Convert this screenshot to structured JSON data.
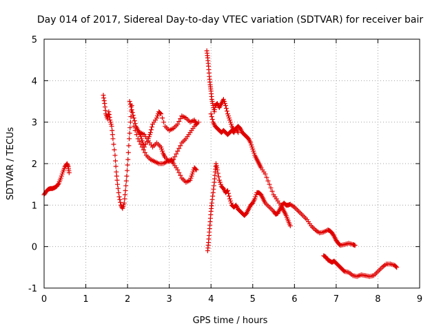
{
  "chart_data": {
    "type": "scatter",
    "title": "Day 014 of 2017, Sidereal Day-to-day VTEC variation (SDTVAR) for receiver bair",
    "xlabel": "GPS time / hours",
    "ylabel": "SDTVAR / TECUs",
    "xlim": [
      0,
      9
    ],
    "ylim": [
      -1,
      5
    ],
    "x_ticks": [
      "0",
      "1",
      "2",
      "3",
      "4",
      "5",
      "6",
      "7",
      "8",
      "9"
    ],
    "y_ticks": [
      "-1",
      "0",
      "1",
      "2",
      "3",
      "4",
      "5"
    ],
    "grid": true,
    "marker": "plus",
    "color": "#e00000",
    "series": [
      {
        "name": "seg1",
        "points": [
          [
            0.0,
            1.25
          ],
          [
            0.05,
            1.33
          ],
          [
            0.1,
            1.38
          ],
          [
            0.15,
            1.4
          ],
          [
            0.2,
            1.4
          ],
          [
            0.25,
            1.42
          ],
          [
            0.3,
            1.45
          ],
          [
            0.35,
            1.52
          ],
          [
            0.4,
            1.65
          ],
          [
            0.45,
            1.8
          ],
          [
            0.5,
            1.93
          ],
          [
            0.55,
            2.0
          ],
          [
            0.58,
            1.92
          ],
          [
            0.6,
            1.78
          ]
        ]
      },
      {
        "name": "seg2",
        "points": [
          [
            1.42,
            3.65
          ],
          [
            1.45,
            3.45
          ],
          [
            1.48,
            3.2
          ],
          [
            1.52,
            3.08
          ],
          [
            1.55,
            3.25
          ],
          [
            1.58,
            3.05
          ],
          [
            1.62,
            2.9
          ],
          [
            1.65,
            2.6
          ],
          [
            1.7,
            2.2
          ],
          [
            1.73,
            1.8
          ],
          [
            1.76,
            1.5
          ],
          [
            1.8,
            1.2
          ],
          [
            1.84,
            1.0
          ],
          [
            1.88,
            0.92
          ],
          [
            1.92,
            1.05
          ],
          [
            1.95,
            1.35
          ],
          [
            1.98,
            1.7
          ],
          [
            2.01,
            2.1
          ],
          [
            2.04,
            2.6
          ],
          [
            2.07,
            3.0
          ],
          [
            2.1,
            3.4
          ]
        ]
      },
      {
        "name": "seg3",
        "points": [
          [
            2.05,
            3.5
          ],
          [
            2.1,
            3.3
          ],
          [
            2.15,
            3.1
          ],
          [
            2.2,
            2.9
          ],
          [
            2.25,
            2.8
          ],
          [
            2.3,
            2.7
          ],
          [
            2.35,
            2.55
          ],
          [
            2.4,
            2.4
          ],
          [
            2.5,
            2.6
          ],
          [
            2.55,
            2.75
          ],
          [
            2.6,
            2.95
          ],
          [
            2.7,
            3.1
          ],
          [
            2.75,
            3.25
          ],
          [
            2.8,
            3.2
          ],
          [
            2.9,
            2.9
          ],
          [
            3.0,
            2.8
          ],
          [
            3.1,
            2.85
          ],
          [
            3.2,
            2.95
          ],
          [
            3.3,
            3.15
          ],
          [
            3.4,
            3.1
          ],
          [
            3.5,
            3.0
          ],
          [
            3.6,
            3.05
          ],
          [
            3.65,
            2.95
          ]
        ]
      },
      {
        "name": "seg4",
        "points": [
          [
            2.15,
            2.9
          ],
          [
            2.25,
            2.6
          ],
          [
            2.35,
            2.4
          ],
          [
            2.45,
            2.2
          ],
          [
            2.55,
            2.1
          ],
          [
            2.65,
            2.05
          ],
          [
            2.75,
            2.0
          ],
          [
            2.85,
            2.0
          ],
          [
            2.95,
            2.05
          ],
          [
            3.05,
            2.1
          ],
          [
            3.1,
            2.0
          ],
          [
            3.2,
            1.85
          ],
          [
            3.3,
            1.65
          ],
          [
            3.4,
            1.55
          ],
          [
            3.5,
            1.6
          ],
          [
            3.55,
            1.75
          ],
          [
            3.6,
            1.9
          ],
          [
            3.65,
            1.85
          ]
        ]
      },
      {
        "name": "seg5",
        "points": [
          [
            2.3,
            2.75
          ],
          [
            2.4,
            2.7
          ],
          [
            2.5,
            2.55
          ],
          [
            2.6,
            2.4
          ],
          [
            2.7,
            2.5
          ],
          [
            2.8,
            2.4
          ],
          [
            2.85,
            2.25
          ],
          [
            2.9,
            2.15
          ],
          [
            3.0,
            2.05
          ],
          [
            3.1,
            2.1
          ],
          [
            3.2,
            2.3
          ],
          [
            3.3,
            2.5
          ],
          [
            3.4,
            2.6
          ],
          [
            3.5,
            2.75
          ],
          [
            3.6,
            2.9
          ],
          [
            3.7,
            3.0
          ]
        ]
      },
      {
        "name": "seg6",
        "points": [
          [
            3.9,
            4.72
          ],
          [
            3.92,
            4.55
          ],
          [
            3.94,
            4.35
          ],
          [
            3.96,
            4.1
          ],
          [
            3.98,
            3.9
          ],
          [
            4.0,
            3.75
          ],
          [
            4.02,
            3.55
          ],
          [
            4.05,
            3.4
          ],
          [
            4.08,
            3.25
          ],
          [
            4.1,
            3.4
          ],
          [
            4.15,
            3.45
          ],
          [
            4.2,
            3.35
          ],
          [
            4.25,
            3.45
          ],
          [
            4.3,
            3.55
          ],
          [
            4.35,
            3.4
          ],
          [
            4.4,
            3.2
          ],
          [
            4.45,
            3.05
          ],
          [
            4.5,
            2.9
          ],
          [
            4.55,
            2.8
          ],
          [
            4.6,
            2.85
          ],
          [
            4.65,
            2.9
          ],
          [
            4.7,
            2.85
          ],
          [
            4.75,
            2.75
          ],
          [
            4.8,
            2.7
          ],
          [
            4.85,
            2.65
          ],
          [
            4.9,
            2.6
          ],
          [
            4.95,
            2.5
          ],
          [
            5.0,
            2.35
          ],
          [
            5.05,
            2.2
          ],
          [
            5.1,
            2.1
          ],
          [
            5.15,
            2.0
          ],
          [
            5.2,
            1.9
          ],
          [
            5.3,
            1.75
          ],
          [
            5.4,
            1.5
          ],
          [
            5.5,
            1.25
          ],
          [
            5.6,
            1.1
          ],
          [
            5.7,
            0.95
          ],
          [
            5.75,
            0.85
          ],
          [
            5.8,
            0.75
          ],
          [
            5.85,
            0.62
          ],
          [
            5.9,
            0.5
          ]
        ]
      },
      {
        "name": "seg7",
        "points": [
          [
            4.0,
            3.2
          ],
          [
            4.05,
            3.0
          ],
          [
            4.1,
            2.9
          ],
          [
            4.15,
            2.85
          ],
          [
            4.2,
            2.8
          ],
          [
            4.25,
            2.75
          ],
          [
            4.3,
            2.8
          ],
          [
            4.35,
            2.75
          ],
          [
            4.4,
            2.7
          ],
          [
            4.45,
            2.75
          ],
          [
            4.5,
            2.8
          ],
          [
            4.55,
            2.75
          ],
          [
            4.6,
            2.85
          ],
          [
            4.65,
            2.75
          ]
        ]
      },
      {
        "name": "seg8",
        "points": [
          [
            3.92,
            -0.1
          ],
          [
            3.94,
            0.1
          ],
          [
            3.96,
            0.35
          ],
          [
            3.98,
            0.6
          ],
          [
            4.0,
            0.85
          ],
          [
            4.02,
            1.05
          ],
          [
            4.05,
            1.3
          ],
          [
            4.08,
            1.55
          ],
          [
            4.1,
            1.8
          ],
          [
            4.12,
            2.0
          ],
          [
            4.15,
            1.85
          ],
          [
            4.2,
            1.6
          ],
          [
            4.25,
            1.45
          ],
          [
            4.3,
            1.4
          ],
          [
            4.35,
            1.3
          ],
          [
            4.4,
            1.35
          ],
          [
            4.45,
            1.15
          ],
          [
            4.5,
            1.0
          ],
          [
            4.55,
            0.95
          ],
          [
            4.6,
            1.0
          ],
          [
            4.65,
            0.9
          ],
          [
            4.7,
            0.85
          ],
          [
            4.75,
            0.8
          ],
          [
            4.8,
            0.75
          ],
          [
            4.85,
            0.8
          ],
          [
            4.9,
            0.9
          ],
          [
            4.95,
            1.0
          ],
          [
            5.0,
            1.05
          ],
          [
            5.05,
            1.15
          ],
          [
            5.1,
            1.3
          ],
          [
            5.15,
            1.3
          ],
          [
            5.2,
            1.25
          ],
          [
            5.25,
            1.15
          ],
          [
            5.3,
            1.05
          ],
          [
            5.4,
            0.95
          ],
          [
            5.5,
            0.85
          ],
          [
            5.55,
            0.78
          ],
          [
            5.6,
            0.8
          ],
          [
            5.65,
            0.9
          ],
          [
            5.7,
            1.0
          ],
          [
            5.75,
            1.05
          ],
          [
            5.8,
            1.0
          ],
          [
            5.85,
            1.0
          ],
          [
            5.9,
            1.02
          ],
          [
            6.0,
            0.95
          ],
          [
            6.1,
            0.85
          ],
          [
            6.2,
            0.75
          ],
          [
            6.3,
            0.65
          ],
          [
            6.4,
            0.5
          ],
          [
            6.5,
            0.4
          ],
          [
            6.6,
            0.33
          ],
          [
            6.7,
            0.35
          ],
          [
            6.8,
            0.4
          ],
          [
            6.85,
            0.38
          ],
          [
            6.9,
            0.33
          ],
          [
            6.95,
            0.25
          ],
          [
            7.0,
            0.15
          ],
          [
            7.05,
            0.08
          ],
          [
            7.1,
            0.03
          ],
          [
            7.2,
            0.05
          ],
          [
            7.3,
            0.08
          ],
          [
            7.4,
            0.05
          ],
          [
            7.45,
            0.03
          ]
        ]
      },
      {
        "name": "seg9",
        "points": [
          [
            6.7,
            -0.22
          ],
          [
            6.75,
            -0.25
          ],
          [
            6.8,
            -0.32
          ],
          [
            6.85,
            -0.35
          ],
          [
            6.9,
            -0.38
          ],
          [
            6.95,
            -0.35
          ],
          [
            7.0,
            -0.4
          ],
          [
            7.05,
            -0.45
          ],
          [
            7.1,
            -0.5
          ],
          [
            7.15,
            -0.55
          ],
          [
            7.2,
            -0.6
          ],
          [
            7.3,
            -0.62
          ],
          [
            7.4,
            -0.7
          ],
          [
            7.5,
            -0.72
          ],
          [
            7.6,
            -0.68
          ],
          [
            7.7,
            -0.7
          ],
          [
            7.8,
            -0.72
          ],
          [
            7.9,
            -0.7
          ],
          [
            8.0,
            -0.6
          ],
          [
            8.1,
            -0.5
          ],
          [
            8.2,
            -0.42
          ],
          [
            8.3,
            -0.42
          ],
          [
            8.4,
            -0.45
          ],
          [
            8.45,
            -0.5
          ]
        ]
      }
    ]
  }
}
